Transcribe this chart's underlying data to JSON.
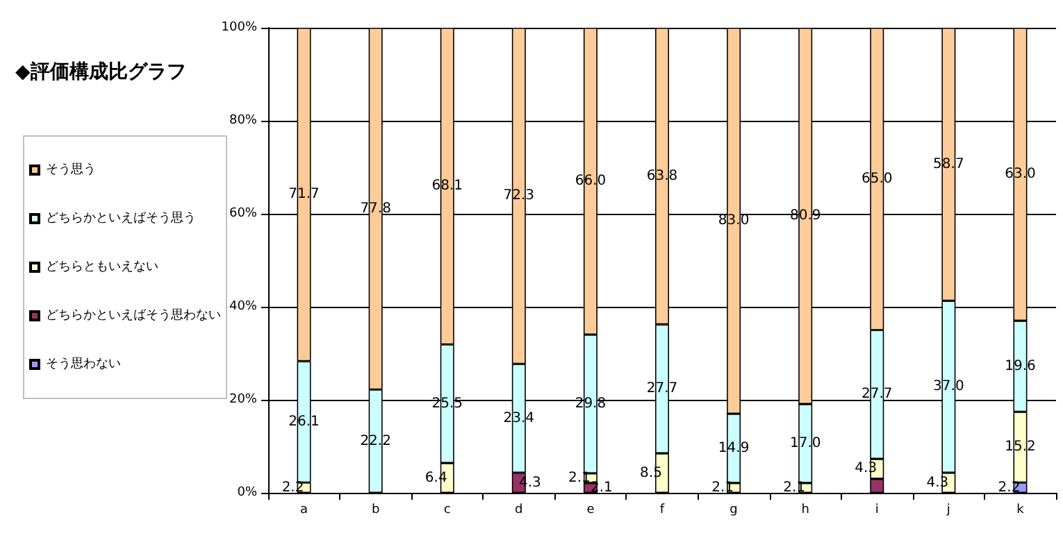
{
  "chart_data": {
    "type": "bar",
    "title": "◆評価構成比グラフ",
    "stacked": true,
    "categories": [
      "a",
      "b",
      "c",
      "d",
      "e",
      "f",
      "g",
      "h",
      "i",
      "j",
      "k"
    ],
    "series": [
      {
        "name": "そう思わない",
        "color": "#9999ff",
        "values": [
          0,
          0,
          0,
          0,
          0,
          0,
          0,
          0,
          0,
          0,
          2.2
        ],
        "value_labels": [
          null,
          null,
          null,
          null,
          null,
          null,
          null,
          null,
          null,
          null,
          "2.2"
        ]
      },
      {
        "name": "どちらかといえばそう思わない",
        "color": "#993366",
        "values": [
          0,
          0,
          0,
          4.3,
          2.1,
          0,
          0,
          0,
          3.0,
          0,
          0
        ],
        "value_labels": [
          null,
          null,
          null,
          "4.3",
          "2.1",
          null,
          null,
          null,
          null,
          null,
          null
        ]
      },
      {
        "name": "どちらともいえない",
        "color": "#ffffcc",
        "values": [
          2.2,
          0,
          6.4,
          0,
          2.1,
          8.5,
          2.1,
          2.1,
          4.3,
          4.3,
          15.2
        ],
        "value_labels": [
          "2.2",
          null,
          "6.4",
          null,
          "2.1",
          "8.5",
          "2.1",
          "2.1",
          "4.3",
          "4.3",
          "15.2"
        ]
      },
      {
        "name": "どちらかといえばそう思う",
        "color": "#ccffff",
        "values": [
          26.1,
          22.2,
          25.5,
          23.4,
          29.8,
          27.7,
          14.9,
          17.0,
          27.7,
          37.0,
          19.6
        ],
        "value_labels": [
          "26.1",
          "22.2",
          "25.5",
          "23.4",
          "29.8",
          "27.7",
          "14.9",
          "17.0",
          "27.7",
          "37.0",
          "19.6"
        ]
      },
      {
        "name": "そう思う",
        "color": "#ffcc99",
        "values": [
          71.7,
          77.8,
          68.1,
          72.3,
          66.0,
          63.8,
          83.0,
          80.9,
          65.0,
          58.7,
          63.0
        ],
        "value_labels": [
          "71.7",
          "77.8",
          "68.1",
          "72.3",
          "66.0",
          "63.8",
          "83.0",
          "80.9",
          "65.0",
          "58.7",
          "63.0"
        ]
      }
    ],
    "ylim": [
      0,
      100
    ],
    "yticks": [
      {
        "value": 0,
        "label": "0%"
      },
      {
        "value": 20,
        "label": "20%"
      },
      {
        "value": 40,
        "label": "40%"
      },
      {
        "value": 60,
        "label": "60%"
      },
      {
        "value": 80,
        "label": "80%"
      },
      {
        "value": 100,
        "label": "100%"
      }
    ],
    "grid": "y",
    "legend": "left"
  }
}
